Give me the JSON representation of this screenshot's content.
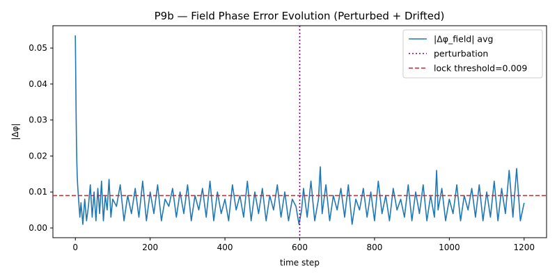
{
  "chart_data": {
    "type": "line",
    "title": "P9b — Field Phase Error Evolution (Perturbed + Drifted)",
    "xlabel": "time step",
    "ylabel": "|Δφ|",
    "xlim": [
      -60,
      1260
    ],
    "ylim": [
      -0.0027,
      0.0562
    ],
    "xticks": [
      0,
      200,
      400,
      600,
      800,
      1000,
      1200
    ],
    "yticks": [
      0.0,
      0.01,
      0.02,
      0.03,
      0.04,
      0.05
    ],
    "xtick_labels": [
      "0",
      "200",
      "400",
      "600",
      "800",
      "1000",
      "1200"
    ],
    "ytick_labels": [
      "0.00",
      "0.01",
      "0.02",
      "0.03",
      "0.04",
      "0.05"
    ],
    "grid": false,
    "legend_position": "top-right",
    "series": [
      {
        "name": "|Δφ_field| avg",
        "color": "#1f77b4",
        "x": [
          0,
          1,
          2,
          3,
          4,
          5,
          6,
          8,
          10,
          12,
          15,
          20,
          25,
          30,
          35,
          40,
          45,
          50,
          55,
          60,
          65,
          70,
          75,
          80,
          85,
          90,
          95,
          100,
          110,
          120,
          130,
          140,
          150,
          160,
          170,
          180,
          190,
          200,
          210,
          220,
          230,
          240,
          250,
          260,
          270,
          280,
          290,
          300,
          310,
          320,
          330,
          340,
          350,
          360,
          370,
          380,
          390,
          400,
          410,
          420,
          430,
          440,
          450,
          460,
          470,
          480,
          490,
          500,
          510,
          520,
          530,
          540,
          550,
          560,
          570,
          580,
          590,
          598,
          605,
          610,
          620,
          630,
          640,
          650,
          655,
          660,
          670,
          680,
          690,
          700,
          710,
          720,
          730,
          740,
          750,
          760,
          770,
          780,
          790,
          800,
          810,
          820,
          830,
          840,
          850,
          860,
          870,
          880,
          890,
          900,
          910,
          920,
          930,
          940,
          950,
          960,
          966,
          970,
          980,
          990,
          1000,
          1010,
          1020,
          1030,
          1040,
          1050,
          1060,
          1070,
          1080,
          1090,
          1100,
          1110,
          1120,
          1130,
          1140,
          1150,
          1160,
          1170,
          1180,
          1190,
          1200
        ],
        "y": [
          0.0535,
          0.042,
          0.032,
          0.024,
          0.018,
          0.0145,
          0.012,
          0.009,
          0.006,
          0.003,
          0.007,
          0.001,
          0.008,
          0.002,
          0.006,
          0.012,
          0.003,
          0.01,
          0.002,
          0.011,
          0.004,
          0.013,
          0.002,
          0.009,
          0.005,
          0.0135,
          0.003,
          0.008,
          0.006,
          0.012,
          0.002,
          0.009,
          0.004,
          0.011,
          0.003,
          0.013,
          0.002,
          0.01,
          0.004,
          0.012,
          0.002,
          0.008,
          0.006,
          0.011,
          0.003,
          0.01,
          0.004,
          0.012,
          0.002,
          0.009,
          0.005,
          0.011,
          0.003,
          0.013,
          0.002,
          0.01,
          0.004,
          0.008,
          0.002,
          0.012,
          0.005,
          0.009,
          0.003,
          0.013,
          0.002,
          0.01,
          0.004,
          0.011,
          0.002,
          0.009,
          0.005,
          0.012,
          0.003,
          0.01,
          0.002,
          0.008,
          0.006,
          0.001,
          0.005,
          0.011,
          0.003,
          0.013,
          0.002,
          0.008,
          0.017,
          0.004,
          0.012,
          0.002,
          0.009,
          0.005,
          0.011,
          0.003,
          0.012,
          0.001,
          0.008,
          0.005,
          0.011,
          0.003,
          0.01,
          0.002,
          0.013,
          0.004,
          0.009,
          0.002,
          0.011,
          0.005,
          0.008,
          0.003,
          0.012,
          0.002,
          0.01,
          0.004,
          0.012,
          0.002,
          0.009,
          0.003,
          0.016,
          0.005,
          0.011,
          0.002,
          0.008,
          0.004,
          0.012,
          0.002,
          0.009,
          0.005,
          0.011,
          0.003,
          0.012,
          0.002,
          0.01,
          0.003,
          0.013,
          0.002,
          0.011,
          0.004,
          0.016,
          0.003,
          0.0165,
          0.002,
          0.007
        ]
      }
    ],
    "vline": {
      "name": "perturbation",
      "x": 600,
      "color": "#800080",
      "style": "dotted"
    },
    "hline": {
      "name": "lock threshold=0.009",
      "y": 0.009,
      "color": "#d62728",
      "style": "dashed"
    }
  }
}
